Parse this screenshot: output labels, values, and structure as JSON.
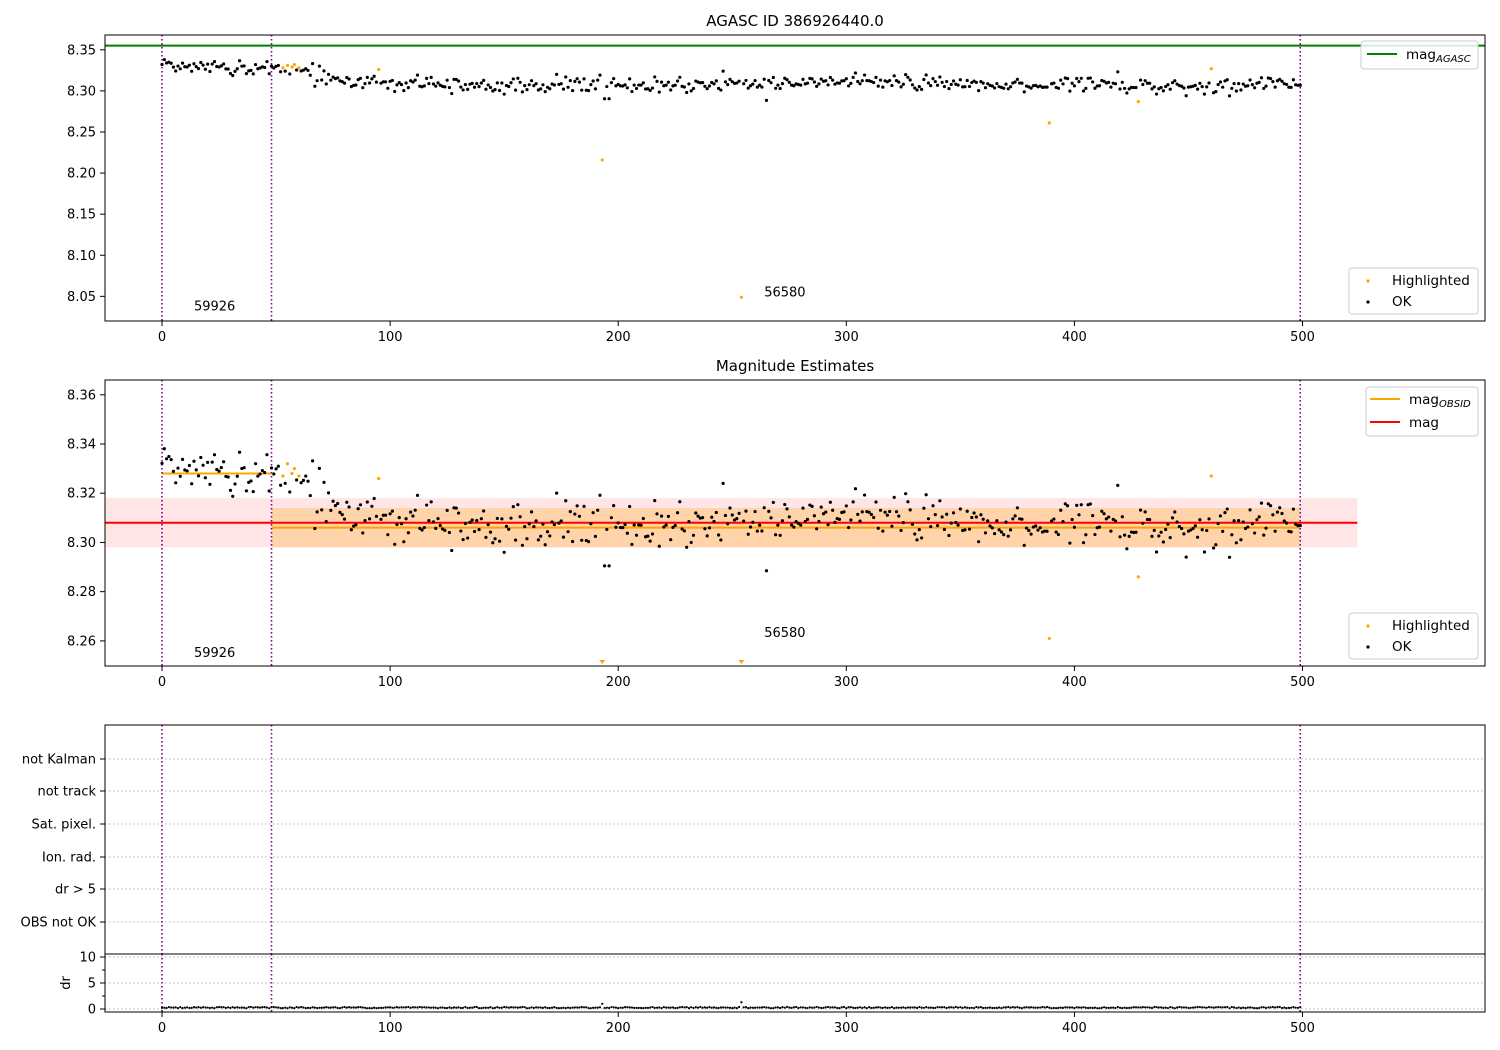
{
  "chart_data": [
    {
      "type": "scatter",
      "title": "AGASC ID 386926440.0",
      "xlim": [
        -25,
        580
      ],
      "ylim": [
        8.02,
        8.368
      ],
      "xticks": [
        0,
        100,
        200,
        300,
        400,
        500
      ],
      "yticks": [
        8.05,
        8.1,
        8.15,
        8.2,
        8.25,
        8.3,
        8.35
      ],
      "yticklabels": [
        "8.05",
        "8.10",
        "8.15",
        "8.20",
        "8.25",
        "8.30",
        "8.35"
      ],
      "vlines": [
        0,
        48,
        499
      ],
      "hlines": [
        {
          "name": "mag_AGASC",
          "y": 8.355,
          "color": "#008000"
        }
      ],
      "annotations": [
        {
          "text": "59926",
          "x": 14,
          "y": 8.033
        },
        {
          "text": "56580",
          "x": 264,
          "y": 8.05
        }
      ],
      "legends": [
        {
          "position": "top-right",
          "entries": [
            "mag_AGASC"
          ]
        },
        {
          "position": "bottom-right",
          "entries": [
            "Highlighted",
            "OK"
          ]
        }
      ],
      "series": [
        {
          "name": "OK",
          "color": "#000000",
          "generator": "ok_points",
          "note": "about 500 points, one per x from 0 to 499, y ~8.29–8.34"
        },
        {
          "name": "Highlighted",
          "color": "#ffa500",
          "points": [
            [
              53,
              8.328
            ],
            [
              55,
              8.331
            ],
            [
              57,
              8.329
            ],
            [
              58,
              8.332
            ],
            [
              60,
              8.328
            ],
            [
              95,
              8.326
            ],
            [
              193,
              8.216
            ],
            [
              254,
              8.049
            ],
            [
              389,
              8.261
            ],
            [
              428,
              8.287
            ],
            [
              460,
              8.327
            ]
          ]
        }
      ]
    },
    {
      "type": "scatter",
      "title": "Magnitude Estimates",
      "xlim": [
        -25,
        580
      ],
      "ylim": [
        8.2498,
        8.366
      ],
      "xticks": [
        0,
        100,
        200,
        300,
        400,
        500
      ],
      "yticks": [
        8.26,
        8.28,
        8.3,
        8.32,
        8.34,
        8.36
      ],
      "yticklabels": [
        "8.26",
        "8.28",
        "8.30",
        "8.32",
        "8.34",
        "8.36"
      ],
      "vlines": [
        0,
        48,
        499
      ],
      "annotations": [
        {
          "text": "59926",
          "x": 14,
          "y": 8.2535
        },
        {
          "text": "56580",
          "x": 264,
          "y": 8.2615
        }
      ],
      "bands": [
        {
          "x": [
            -25,
            524
          ],
          "y": [
            8.298,
            8.318
          ],
          "color": "#ff9999",
          "opacity": 0.25
        },
        {
          "x": [
            48,
            499
          ],
          "y": [
            8.298,
            8.314
          ],
          "color": "#ffa500",
          "opacity": 0.25
        }
      ],
      "segments": [
        {
          "name": "mag",
          "x": [
            -25,
            524
          ],
          "y": 8.308,
          "color": "#ff0000"
        },
        {
          "name": "mag_OBSID",
          "x": [
            0,
            48
          ],
          "y": 8.328,
          "color": "#ffa500"
        },
        {
          "name": "mag_OBSID",
          "x": [
            48,
            499
          ],
          "y": 8.306,
          "color": "#ffa500"
        }
      ],
      "off_scale_markers": [
        193,
        254
      ],
      "legends": [
        {
          "position": "top-right",
          "entries": [
            "mag_OBSID",
            "mag"
          ]
        },
        {
          "position": "bottom-right",
          "entries": [
            "Highlighted",
            "OK"
          ]
        }
      ],
      "series": [
        {
          "name": "OK",
          "color": "#000000",
          "generator": "ok_points"
        },
        {
          "name": "Highlighted",
          "color": "#ffa500",
          "points": [
            [
              53,
              8.327
            ],
            [
              55,
              8.332
            ],
            [
              57,
              8.328
            ],
            [
              58,
              8.33
            ],
            [
              60,
              8.327
            ],
            [
              95,
              8.326
            ],
            [
              389,
              8.261
            ],
            [
              428,
              8.286
            ],
            [
              460,
              8.327
            ]
          ]
        }
      ]
    },
    {
      "type": "scatter",
      "xlim": [
        -25,
        580
      ],
      "categories": [
        "not Kalman",
        "not track",
        "Sat. pixel.",
        "Ion. rad.",
        "dr > 5",
        "OBS not OK"
      ],
      "vlines": [
        0,
        48,
        499
      ],
      "series": []
    },
    {
      "type": "scatter",
      "ylabel": "dr",
      "xlim": [
        -25,
        580
      ],
      "ylim": [
        -1,
        11
      ],
      "xticks": [
        0,
        100,
        200,
        300,
        400,
        500
      ],
      "yticks": [
        0,
        5,
        10
      ],
      "yticklabels": [
        "0",
        "5",
        "10"
      ],
      "vlines": [
        0,
        48,
        499
      ],
      "series": [
        {
          "name": "dr",
          "color": "#000000",
          "generator": "dr_points",
          "note": "about 500 points near 0, max ~1.3 at x=254"
        }
      ]
    }
  ],
  "legend_labels": {
    "mag_agasc_base": "mag",
    "mag_agasc_sub": "AGASC",
    "mag_obsid_base": "mag",
    "mag_obsid_sub": "OBSID",
    "mag": "mag",
    "highlighted": "Highlighted",
    "ok": "OK"
  },
  "colors": {
    "ok": "#000000",
    "highlighted": "#ffa500",
    "agasc_line": "#008000",
    "mag_line": "#ff0000",
    "obsid_line": "#ffa500",
    "vline": "#800080",
    "grid": "#b0b0b0"
  }
}
